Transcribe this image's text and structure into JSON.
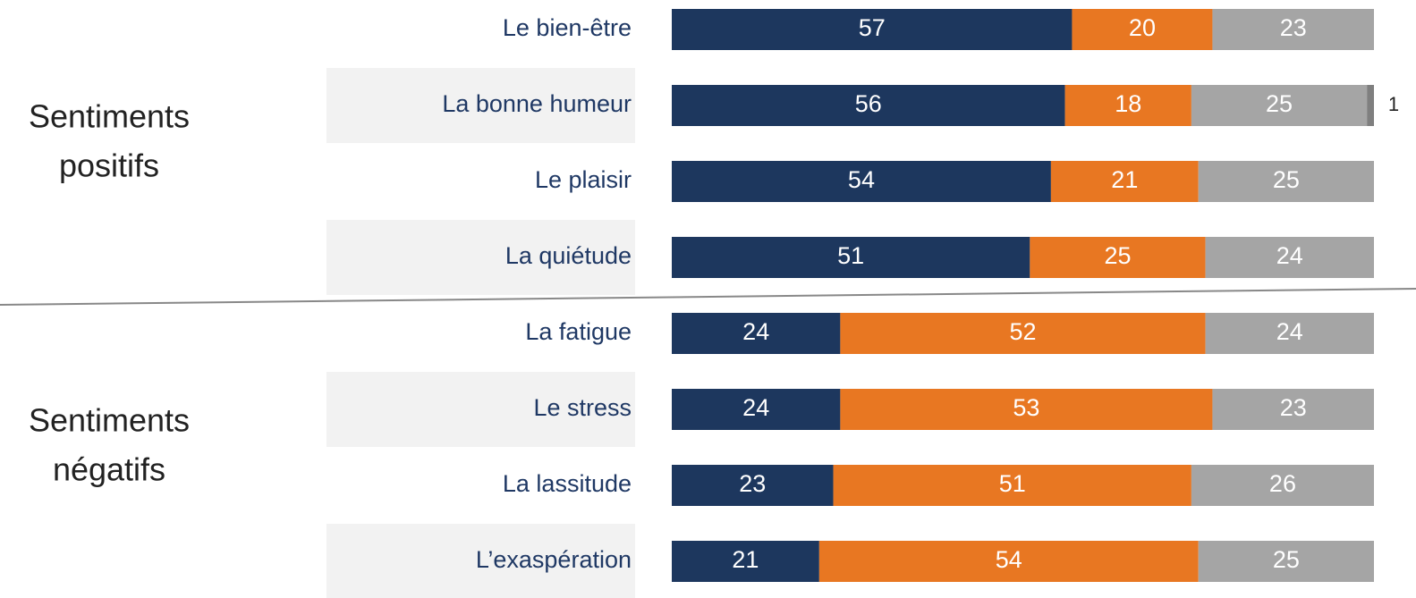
{
  "chart_data": {
    "type": "stacked-bar",
    "orientation": "horizontal",
    "categories": [
      "Le bien-être",
      "La bonne humeur",
      "Le plaisir",
      "La quiétude",
      "La fatigue",
      "Le stress",
      "La lassitude",
      "L’exaspération"
    ],
    "groups": [
      {
        "lines": [
          "Sentiments",
          "positifs"
        ],
        "rows": [
          0,
          3
        ]
      },
      {
        "lines": [
          "Sentiments",
          "négatifs"
        ],
        "rows": [
          4,
          7
        ]
      }
    ],
    "xlim": [
      0,
      100
    ],
    "series": [
      {
        "color": "#1d375e",
        "values": [
          57,
          56,
          54,
          51,
          24,
          24,
          23,
          21
        ]
      },
      {
        "color": "#e87722",
        "values": [
          20,
          18,
          21,
          25,
          52,
          53,
          51,
          54
        ]
      },
      {
        "color": "#a5a5a5",
        "values": [
          23,
          25,
          25,
          24,
          24,
          23,
          26,
          25
        ]
      },
      {
        "color": "#7f7f7f",
        "values": [
          null,
          1,
          null,
          null,
          null,
          null,
          null,
          null
        ]
      }
    ]
  }
}
